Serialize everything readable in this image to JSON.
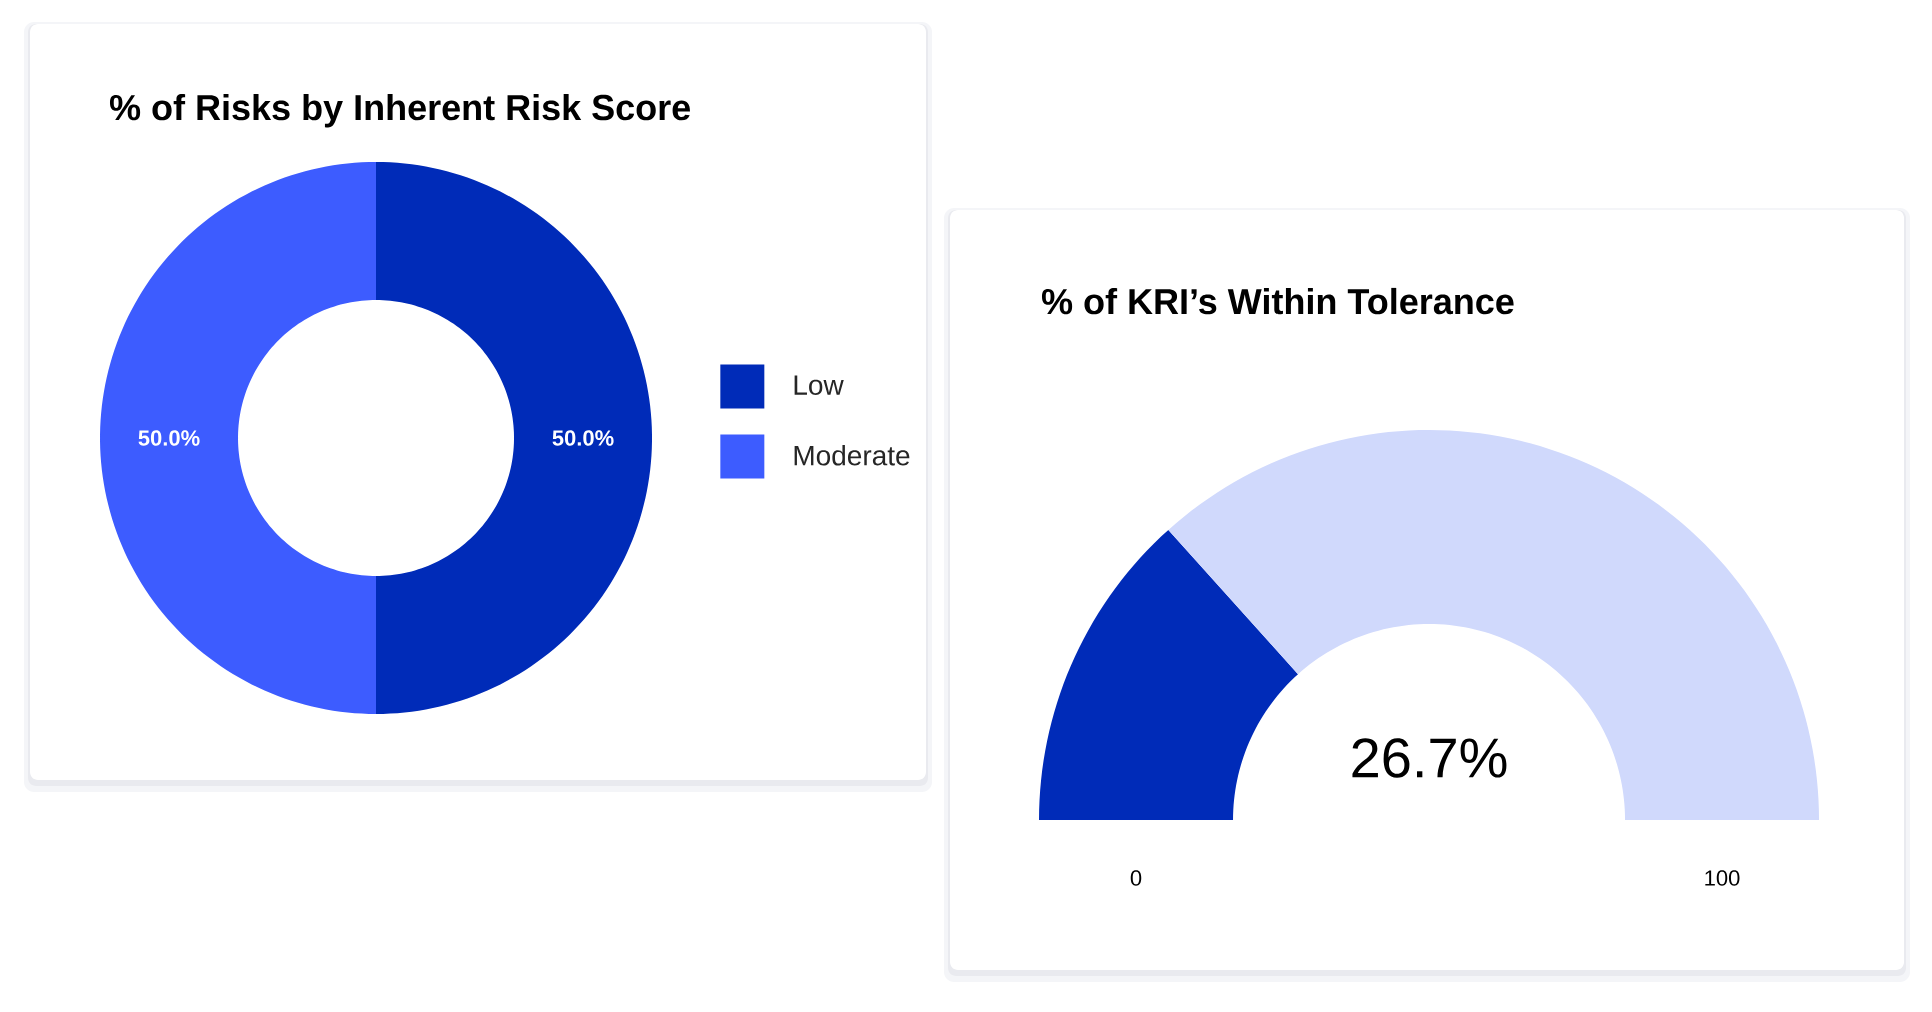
{
  "chart_data": [
    {
      "type": "donut",
      "title": "% of Risks by Inherent Risk Score",
      "categories": [
        "Low",
        "Moderate"
      ],
      "values": [
        50,
        50
      ],
      "colors": [
        "#002bb8",
        "#3d5cff"
      ],
      "value_labels": [
        "50.0%",
        "50.0%"
      ],
      "legend": "right"
    },
    {
      "type": "donut",
      "title": "% of KRI’s Within Tolerance",
      "categories": [
        null,
        null
      ],
      "values": [
        26.7,
        73.3
      ],
      "colors": [
        "#002bb8",
        "#d0d9fc"
      ],
      "annotations": [
        "26.7%",
        "0",
        "100"
      ]
    }
  ]
}
